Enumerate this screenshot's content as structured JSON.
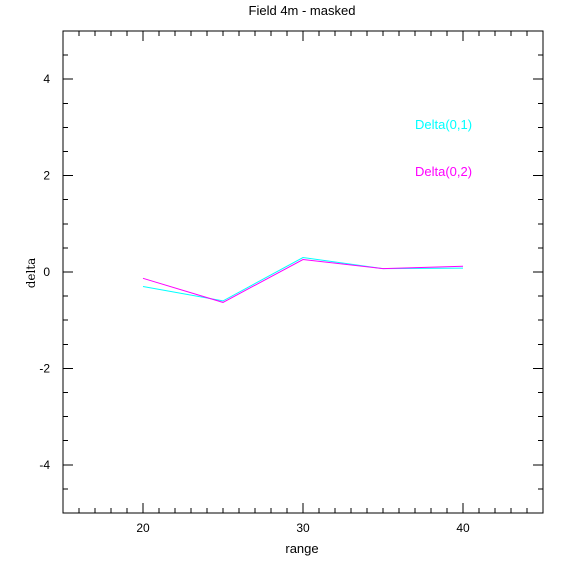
{
  "chart_data": {
    "type": "line",
    "title": "Field 4m - masked",
    "xlabel": "range",
    "ylabel": "delta",
    "xlim": [
      15,
      45
    ],
    "ylim": [
      -5,
      5
    ],
    "x_ticks": [
      20,
      30,
      40
    ],
    "y_ticks": [
      -4,
      -2,
      0,
      2,
      4
    ],
    "x_minor_step": 1,
    "y_minor_step": 0.5,
    "grid": false,
    "legend_placement": "top-right",
    "series": [
      {
        "name": "Delta(0,1)",
        "color": "#00ffff",
        "x": [
          20,
          25,
          30,
          35,
          40
        ],
        "y": [
          -0.3,
          -0.6,
          0.3,
          0.07,
          0.08
        ]
      },
      {
        "name": "Delta(0,2)",
        "color": "#ff00ff",
        "x": [
          20,
          25,
          30,
          35,
          40
        ],
        "y": [
          -0.13,
          -0.63,
          0.26,
          0.07,
          0.12
        ]
      }
    ]
  }
}
